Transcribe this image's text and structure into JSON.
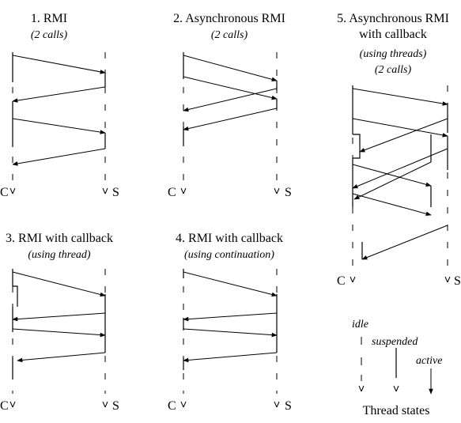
{
  "panels": [
    {
      "title": "1. RMI",
      "subtitle": "(2 calls)",
      "client_label": "C",
      "server_label": "S"
    },
    {
      "title": "2. Asynchronous RMI",
      "subtitle": "(2 calls)",
      "client_label": "C",
      "server_label": "S"
    },
    {
      "title": "3. RMI with callback",
      "subtitle": "(using thread)",
      "client_label": "C",
      "server_label": "S"
    },
    {
      "title": "4. RMI with callback",
      "subtitle": "(using continuation)",
      "client_label": "C",
      "server_label": "S"
    },
    {
      "title_line1": "5. Asynchronous RMI",
      "title_line2": "with callback",
      "subtitle_line1": "(using threads)",
      "subtitle_line2": "(2 calls)",
      "client_label": "C",
      "server_label": "S"
    }
  ],
  "legend": {
    "idle": "idle",
    "suspended": "suspended",
    "active": "active",
    "caption": "Thread states"
  }
}
